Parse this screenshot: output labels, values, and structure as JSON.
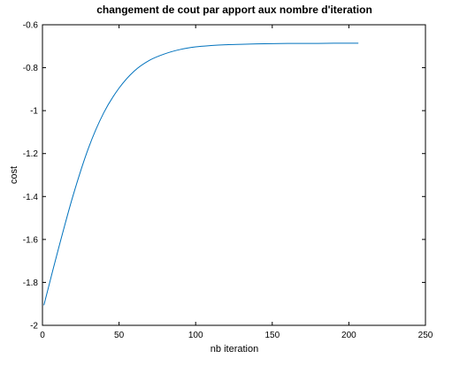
{
  "chart_data": {
    "type": "line",
    "title": "changement de cout par apport aux nombre d'iteration",
    "xlabel": "nb iteration",
    "ylabel": "cost",
    "xlim": [
      0,
      250
    ],
    "ylim": [
      -2,
      -0.6
    ],
    "xticks": [
      0,
      50,
      100,
      150,
      200,
      250
    ],
    "xtick_labels": [
      "0",
      "50",
      "100",
      "150",
      "200",
      "250"
    ],
    "yticks": [
      -2,
      -1.8,
      -1.6,
      -1.4,
      -1.2,
      -1,
      -0.8,
      -0.6
    ],
    "ytick_labels": [
      "-2",
      "-1.8",
      "-1.6",
      "-1.4",
      "-1.2",
      "-1",
      "-0.8",
      "-0.6"
    ],
    "grid": false,
    "line_color": "#0072bd",
    "series": [
      {
        "x": [
          1,
          10,
          20,
          30,
          40,
          50,
          60,
          70,
          80,
          90,
          100,
          110,
          120,
          130,
          140,
          150,
          160,
          170,
          180,
          190,
          200,
          206
        ],
        "values": [
          -1.905,
          -1.655,
          -1.395,
          -1.175,
          -1.01,
          -0.895,
          -0.815,
          -0.765,
          -0.735,
          -0.715,
          -0.703,
          -0.697,
          -0.693,
          -0.691,
          -0.689,
          -0.688,
          -0.687,
          -0.687,
          -0.687,
          -0.686,
          -0.686,
          -0.686
        ]
      }
    ]
  }
}
